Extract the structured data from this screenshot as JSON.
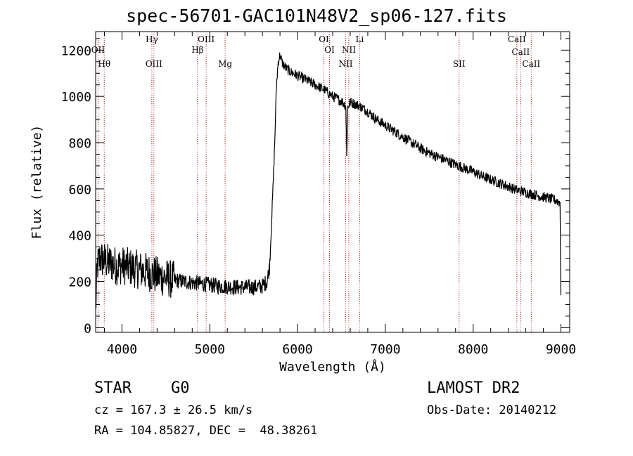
{
  "title": "spec-56701-GAC101N48V2_sp06-127.fits",
  "chart_data": {
    "type": "line",
    "title": "spec-56701-GAC101N48V2_sp06-127.fits",
    "xlabel": "Wavelength (Å)",
    "ylabel": "Flux (relative)",
    "xlim": [
      3700,
      9100
    ],
    "ylim": [
      -20,
      1280
    ],
    "xticks": [
      4000,
      5000,
      6000,
      7000,
      8000,
      9000
    ],
    "yticks": [
      0,
      200,
      400,
      600,
      800,
      1000,
      1200
    ],
    "grid": false,
    "series": [
      {
        "x": [
          3700,
          3720,
          3750,
          3800,
          3850,
          3900,
          3950,
          4000,
          4100,
          4200,
          4300,
          4400,
          4500,
          4600,
          4700,
          4800,
          4900,
          5000,
          5100,
          5200,
          5300,
          5400,
          5500,
          5600,
          5650,
          5680,
          5700,
          5720,
          5740,
          5760,
          5780,
          5800,
          5820,
          5850,
          5900,
          5950,
          6000,
          6100,
          6200,
          6300,
          6400,
          6500,
          6550,
          6560,
          6570,
          6600,
          6700,
          6800,
          6900,
          7000,
          7100,
          7200,
          7300,
          7400,
          7500,
          7600,
          7700,
          7800,
          7900,
          8000,
          8100,
          8200,
          8300,
          8400,
          8500,
          8600,
          8700,
          8800,
          8900,
          8950,
          8990,
          9000
        ],
        "values": [
          80,
          270,
          300,
          290,
          280,
          275,
          265,
          270,
          260,
          250,
          240,
          225,
          215,
          205,
          200,
          195,
          190,
          185,
          180,
          178,
          175,
          175,
          175,
          180,
          200,
          260,
          420,
          600,
          800,
          1050,
          1150,
          1180,
          1150,
          1130,
          1110,
          1100,
          1090,
          1070,
          1050,
          1030,
          1000,
          980,
          960,
          740,
          950,
          975,
          960,
          935,
          900,
          875,
          850,
          825,
          800,
          775,
          755,
          738,
          722,
          705,
          690,
          675,
          655,
          640,
          625,
          610,
          595,
          585,
          575,
          565,
          555,
          550,
          540,
          140
        ]
      }
    ],
    "lines": [
      {
        "name": "OII",
        "wavelength": 3727
      },
      {
        "name": "Hθ",
        "wavelength": 3798
      },
      {
        "name": "Hγ",
        "wavelength": 4340
      },
      {
        "name": "OIII",
        "wavelength": 4363
      },
      {
        "name": "Hβ",
        "wavelength": 4861
      },
      {
        "name": "OIII",
        "wavelength": 4959
      },
      {
        "name": "Mg",
        "wavelength": 5175
      },
      {
        "name": "OI",
        "wavelength": 6300
      },
      {
        "name": "OI",
        "wavelength": 6364
      },
      {
        "name": "NII",
        "wavelength": 6548
      },
      {
        "name": "NII",
        "wavelength": 6584
      },
      {
        "name": "Li",
        "wavelength": 6708
      },
      {
        "name": "SII",
        "wavelength": 7840
      },
      {
        "name": "CaII",
        "wavelength": 8498
      },
      {
        "name": "CaII",
        "wavelength": 8542
      },
      {
        "name": "CaII",
        "wavelength": 8662
      }
    ]
  },
  "footer": {
    "object_type": "STAR",
    "subclass": "G0",
    "survey": "LAMOST DR2",
    "cz": "cz = 167.3 ± 26.5 km/s",
    "obs_date": "Obs-Date: 20140212",
    "coords": "RA = 104.85827, DEC =  48.38261"
  },
  "colors": {
    "spectrum": "#000000",
    "line_marker": "#b22222"
  }
}
